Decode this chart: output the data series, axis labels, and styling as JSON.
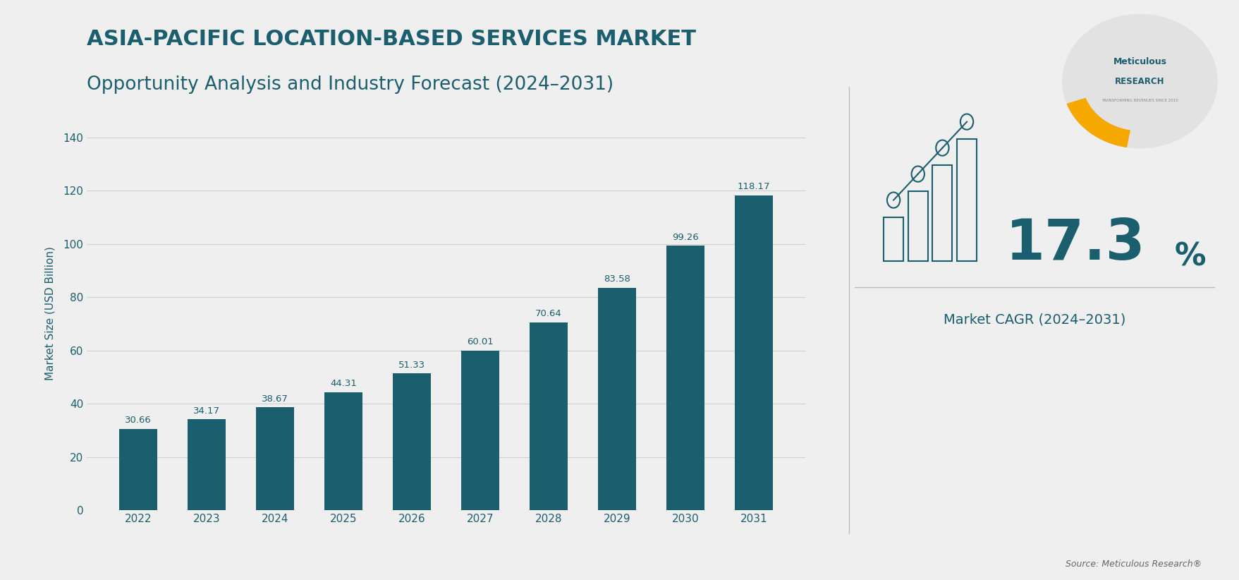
{
  "title_line1": "ASIA-PACIFIC LOCATION-BASED SERVICES MARKET",
  "title_line2": "Opportunity Analysis and Industry Forecast (2024–2031)",
  "years": [
    "2022",
    "2023",
    "2024",
    "2025",
    "2026",
    "2027",
    "2028",
    "2029",
    "2030",
    "2031"
  ],
  "values": [
    30.66,
    34.17,
    38.67,
    44.31,
    51.33,
    60.01,
    70.64,
    83.58,
    99.26,
    118.17
  ],
  "bar_color": "#1b5e6e",
  "ylabel": "Market Size (USD Billion)",
  "yticks": [
    0,
    20,
    40,
    60,
    80,
    100,
    120,
    140
  ],
  "ylim": [
    0,
    148
  ],
  "background_color": "#efefef",
  "plot_bg_color": "#efefef",
  "title_color": "#1b5e6e",
  "label_color": "#1b5e6e",
  "ylabel_color": "#1b5e6e",
  "tick_color": "#1b5e6e",
  "grid_color": "#d0d0d0",
  "cagr_value": "17.3",
  "cagr_pct": "%",
  "cagr_label": "Market CAGR (2024–2031)",
  "source_text": "Source: Meticulous Research®",
  "value_label_fontsize": 9.5,
  "title_fontsize1": 22,
  "title_fontsize2": 19,
  "ylabel_fontsize": 11,
  "ytick_fontsize": 11,
  "xtick_fontsize": 11
}
